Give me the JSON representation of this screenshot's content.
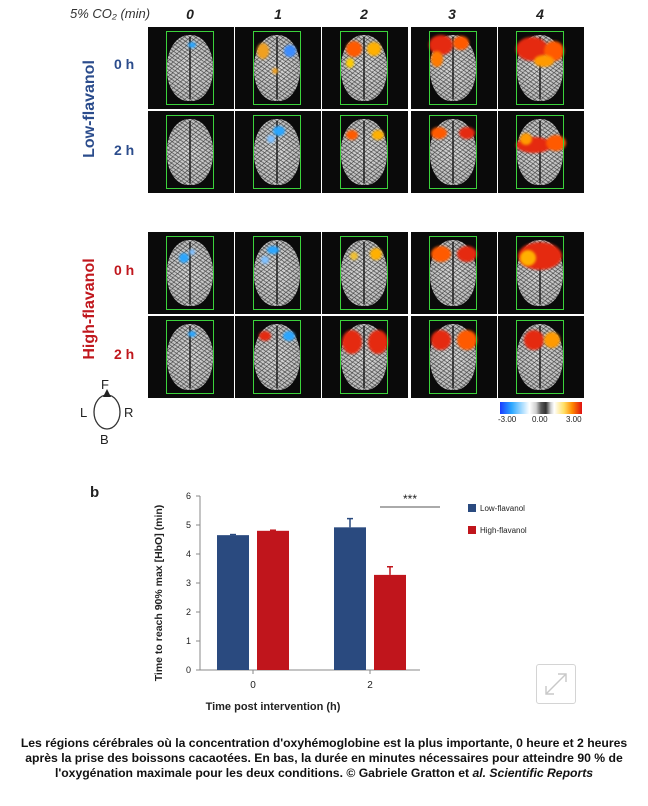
{
  "panel_a": {
    "co2_label": "5% CO₂ (min)",
    "columns": [
      "0",
      "1",
      "2",
      "3",
      "4"
    ],
    "groups": [
      {
        "name": "Low-flavanol",
        "rows": [
          "0 h",
          "2 h"
        ]
      },
      {
        "name": "High-flavanol",
        "rows": [
          "0 h",
          "2 h"
        ]
      }
    ],
    "orientation": {
      "front": "F",
      "left": "L",
      "right": "R",
      "back": "B"
    },
    "scale": {
      "min": "-3.00",
      "mid": "0.00",
      "max": "3.00"
    },
    "colors": {
      "negative": "#2aa6ff",
      "positive": "#ff5a00",
      "frame": "#3bd23b"
    }
  },
  "panel_b_label": "b",
  "chart_data": {
    "type": "bar",
    "categories": [
      "0",
      "2"
    ],
    "series": [
      {
        "name": "Low-flavanol",
        "color": "#2a4a7f",
        "values": [
          4.65,
          4.92
        ],
        "errors": [
          0.02,
          0.3
        ]
      },
      {
        "name": "High-flavanol",
        "color": "#c0151c",
        "values": [
          4.8,
          3.28
        ],
        "errors": [
          0.02,
          0.28
        ]
      }
    ],
    "xlabel": "Time post intervention (h)",
    "ylabel": "Time to reach 90% max [HbO] (min)",
    "ylim": [
      0,
      6
    ],
    "yticks": [
      "0",
      "1",
      "2",
      "3",
      "4",
      "5",
      "6"
    ],
    "significance": "***",
    "legend_position": "right"
  },
  "caption": {
    "text": "Les régions cérébrales où la concentration d'oxyhémoglobine est la plus importante, 0 heure et 2 heures après la prise des boissons cacaotées. En bas, la durée en minutes nécessaires pour atteindre 90 % de l'oxygénation maximale pour les deux conditions. © Gabriele Gratton et ",
    "italic_part": "al. Scientific Reports"
  }
}
